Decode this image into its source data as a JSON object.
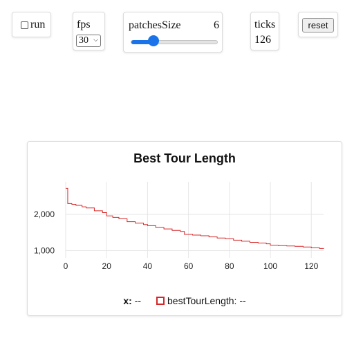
{
  "run": {
    "label": "run",
    "checked": false
  },
  "fps": {
    "label": "fps",
    "selected": "30"
  },
  "patches": {
    "label": "patchesSize",
    "value": "6",
    "min": 1,
    "max": 20,
    "level": 6
  },
  "ticks": {
    "label": "ticks",
    "value": "126"
  },
  "reset": {
    "label": "reset"
  },
  "plot": {
    "legend": {
      "x_label": "x:",
      "x_value": "--",
      "series_label": "bestTourLength:",
      "series_value": "--"
    }
  },
  "chart_data": {
    "type": "line",
    "title": "Best Tour Length",
    "xlabel": "",
    "ylabel": "",
    "xlim": [
      0,
      126
    ],
    "ylim": [
      800,
      2900
    ],
    "x_ticks": [
      "0",
      "20",
      "40",
      "60",
      "80",
      "100",
      "120"
    ],
    "y_ticks": [
      "1,000",
      "2,000"
    ],
    "grid": true,
    "series": [
      {
        "name": "bestTourLength",
        "color": "#d62728",
        "x": [
          0,
          1,
          3,
          5,
          8,
          10,
          14,
          18,
          20,
          23,
          26,
          30,
          34,
          38,
          40,
          44,
          48,
          52,
          56,
          58,
          62,
          66,
          70,
          74,
          78,
          82,
          86,
          90,
          94,
          98,
          100,
          104,
          108,
          112,
          116,
          120,
          124,
          126
        ],
        "y": [
          2720,
          2300,
          2280,
          2250,
          2210,
          2180,
          2100,
          2050,
          1960,
          1920,
          1880,
          1800,
          1760,
          1720,
          1690,
          1640,
          1600,
          1560,
          1530,
          1450,
          1430,
          1410,
          1380,
          1350,
          1330,
          1290,
          1260,
          1230,
          1210,
          1190,
          1150,
          1140,
          1130,
          1120,
          1100,
          1080,
          1060,
          1050
        ]
      }
    ]
  }
}
